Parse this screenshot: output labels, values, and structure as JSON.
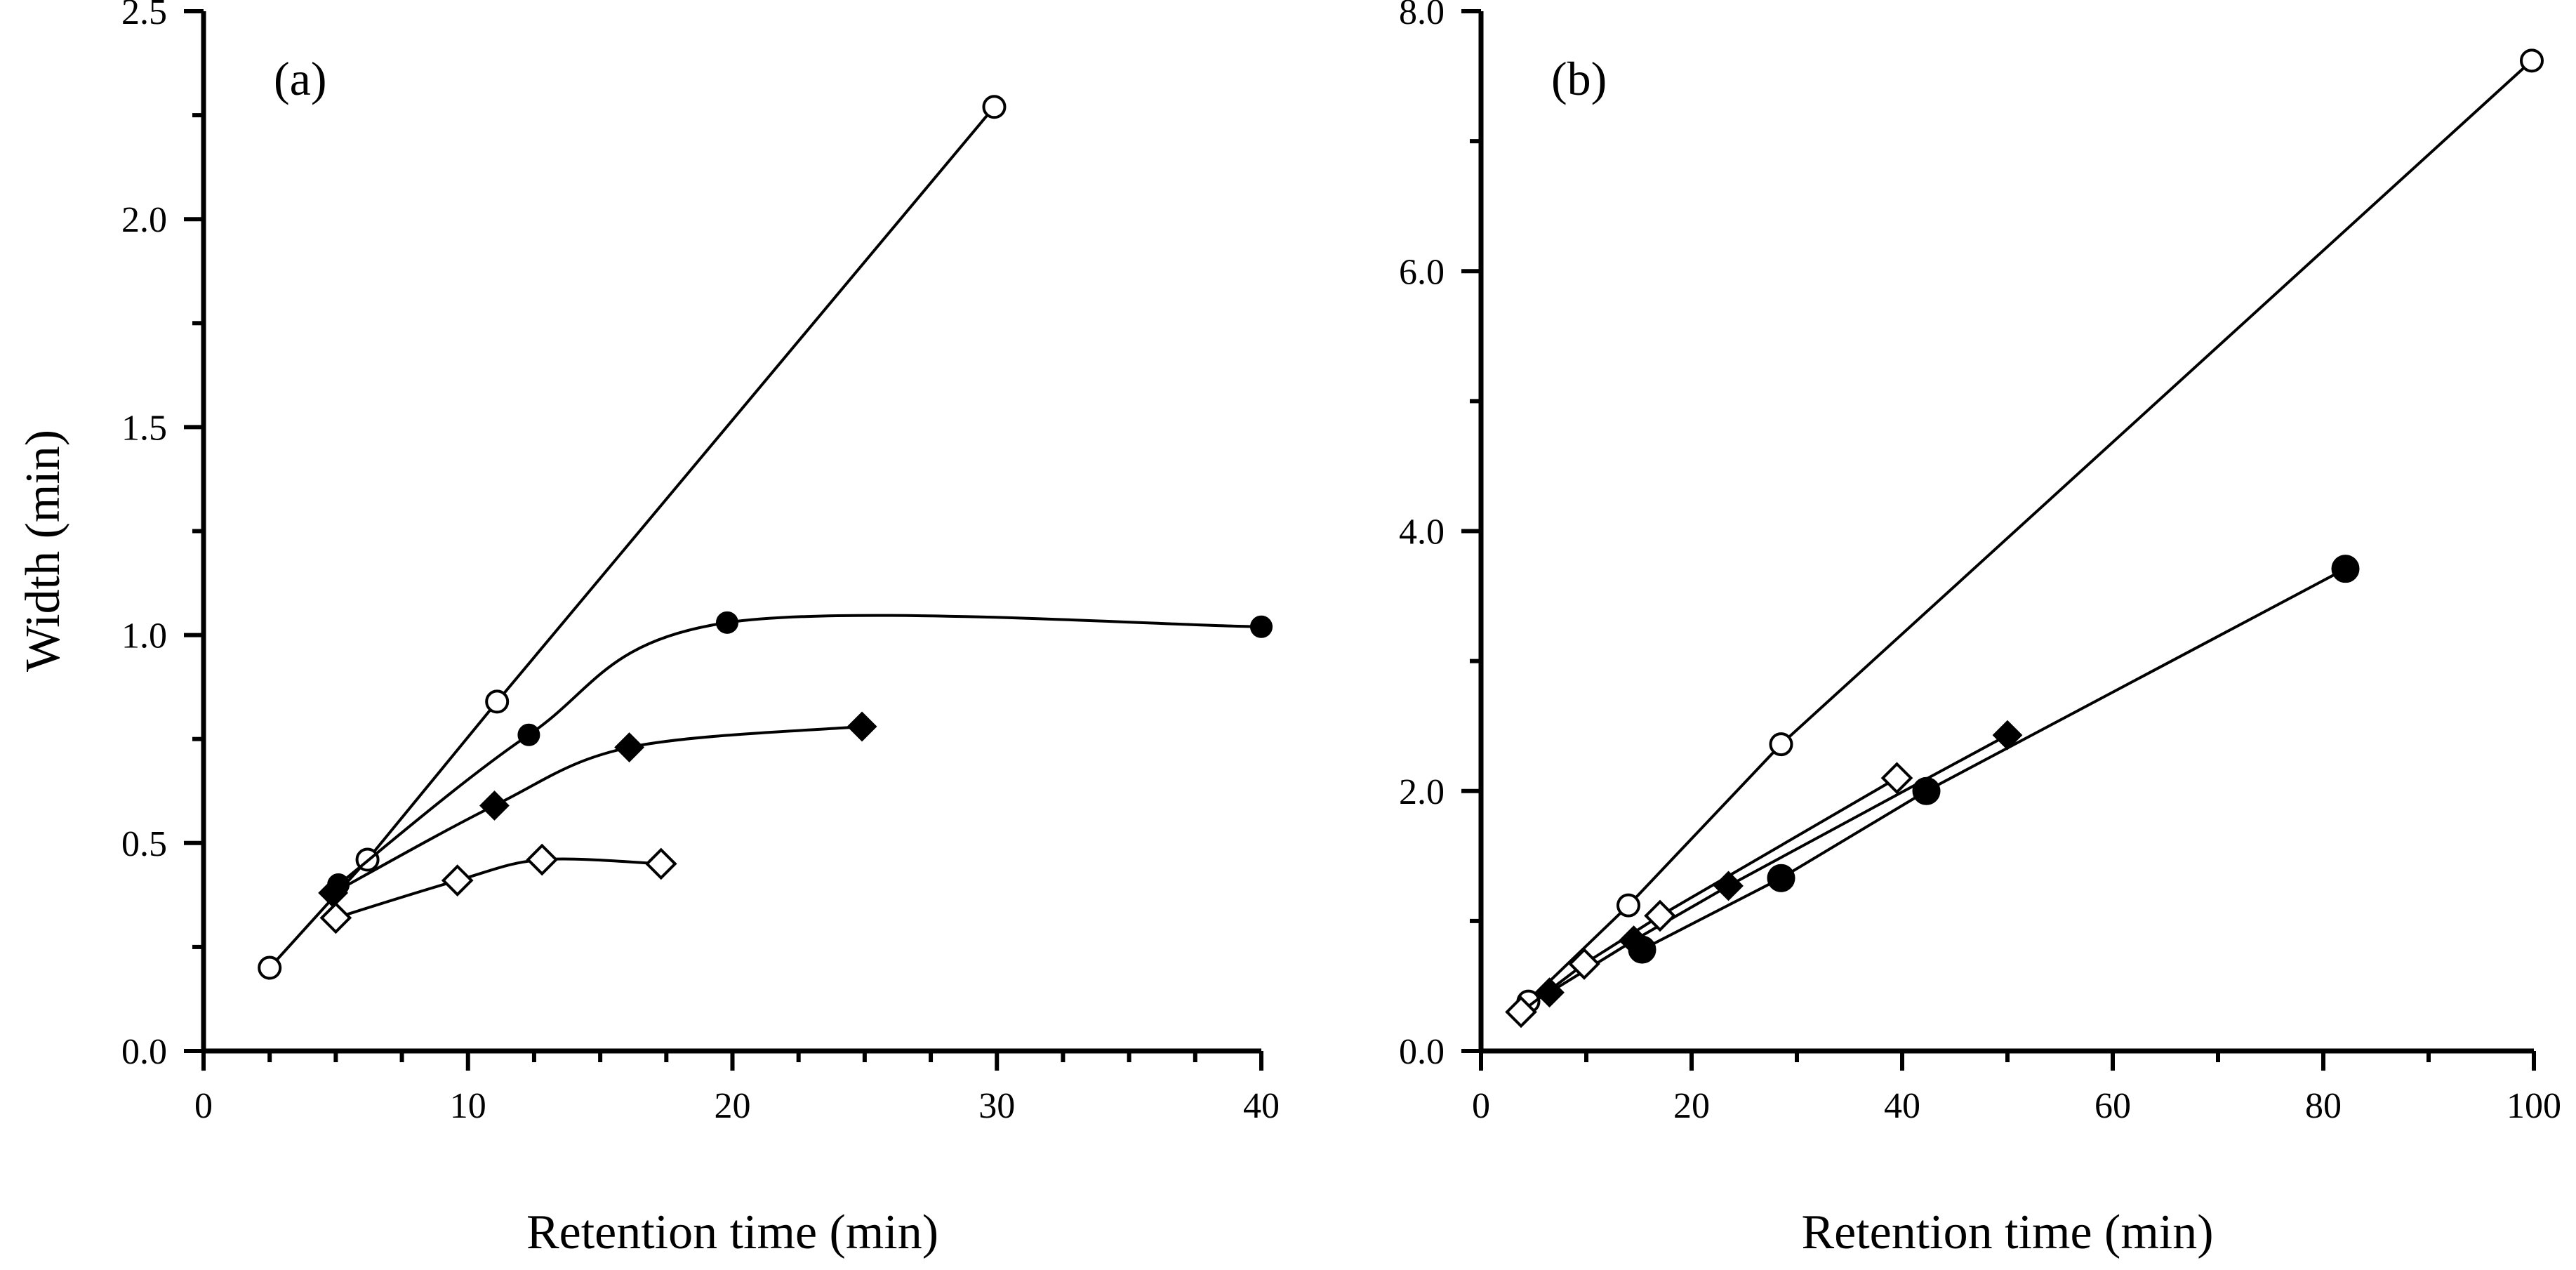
{
  "chart_data": [
    {
      "id": "a",
      "type": "line",
      "panel_label": "(a)",
      "xlabel": "Retention  time  (min)",
      "ylabel": "Width  (min)",
      "xlim": [
        0,
        40
      ],
      "ylim": [
        0,
        2.5
      ],
      "x_ticks": [
        0,
        10,
        20,
        30,
        40
      ],
      "x_tick_labels": [
        "0",
        "10",
        "20",
        "30",
        "40"
      ],
      "x_minor_step": 2.5,
      "y_ticks": [
        0,
        0.5,
        1.0,
        1.5,
        2.0,
        2.5
      ],
      "y_tick_labels": [
        "0.0",
        "0.5",
        "1.0",
        "1.5",
        "2.0",
        "2.5"
      ],
      "y_minor_step": 0.25,
      "series": [
        {
          "name": "open-circle",
          "marker": "circle-open",
          "smooth": false,
          "x": [
            2.5,
            6.2,
            11.1,
            29.9
          ],
          "y": [
            0.2,
            0.46,
            0.84,
            2.27
          ]
        },
        {
          "name": "filled-circle",
          "marker": "circle-filled",
          "smooth": true,
          "x": [
            5.1,
            12.3,
            19.8,
            40.0
          ],
          "y": [
            0.4,
            0.76,
            1.03,
            1.02
          ]
        },
        {
          "name": "filled-diamond",
          "marker": "diamond-filled",
          "smooth": true,
          "x": [
            4.9,
            11.0,
            16.1,
            24.9
          ],
          "y": [
            0.38,
            0.59,
            0.73,
            0.78
          ]
        },
        {
          "name": "open-diamond",
          "marker": "diamond-open",
          "smooth": true,
          "x": [
            5.0,
            9.6,
            12.8,
            17.3
          ],
          "y": [
            0.32,
            0.41,
            0.46,
            0.45
          ]
        }
      ]
    },
    {
      "id": "b",
      "type": "line",
      "panel_label": "(b)",
      "xlabel": "Retention  time  (min)",
      "ylabel": "",
      "xlim": [
        0,
        100
      ],
      "ylim": [
        0,
        8
      ],
      "x_ticks": [
        0,
        20,
        40,
        60,
        80,
        100
      ],
      "x_tick_labels": [
        "0",
        "20",
        "40",
        "60",
        "80",
        "100"
      ],
      "x_minor_step": 10,
      "y_ticks": [
        0,
        2,
        4,
        6,
        8
      ],
      "y_tick_labels": [
        "0.0",
        "2.0",
        "4.0",
        "6.0",
        "8.0"
      ],
      "y_minor_step": 1,
      "series": [
        {
          "name": "open-circle",
          "marker": "circle-open",
          "smooth": false,
          "x": [
            4.5,
            14.0,
            28.5,
            99.8
          ],
          "y": [
            0.38,
            1.12,
            2.36,
            7.62
          ]
        },
        {
          "name": "filled-circle",
          "marker": "circle-filled-large",
          "smooth": false,
          "x": [
            15.3,
            28.5,
            42.3,
            82.1
          ],
          "y": [
            0.78,
            1.33,
            2.0,
            3.71
          ]
        },
        {
          "name": "filled-diamond",
          "marker": "diamond-filled",
          "smooth": false,
          "x": [
            6.5,
            14.5,
            23.5,
            50.0
          ],
          "y": [
            0.45,
            0.85,
            1.27,
            2.43
          ]
        },
        {
          "name": "open-diamond",
          "marker": "diamond-open",
          "smooth": false,
          "x": [
            3.8,
            9.8,
            17.0,
            39.5
          ],
          "y": [
            0.3,
            0.67,
            1.04,
            2.1
          ]
        }
      ]
    }
  ]
}
